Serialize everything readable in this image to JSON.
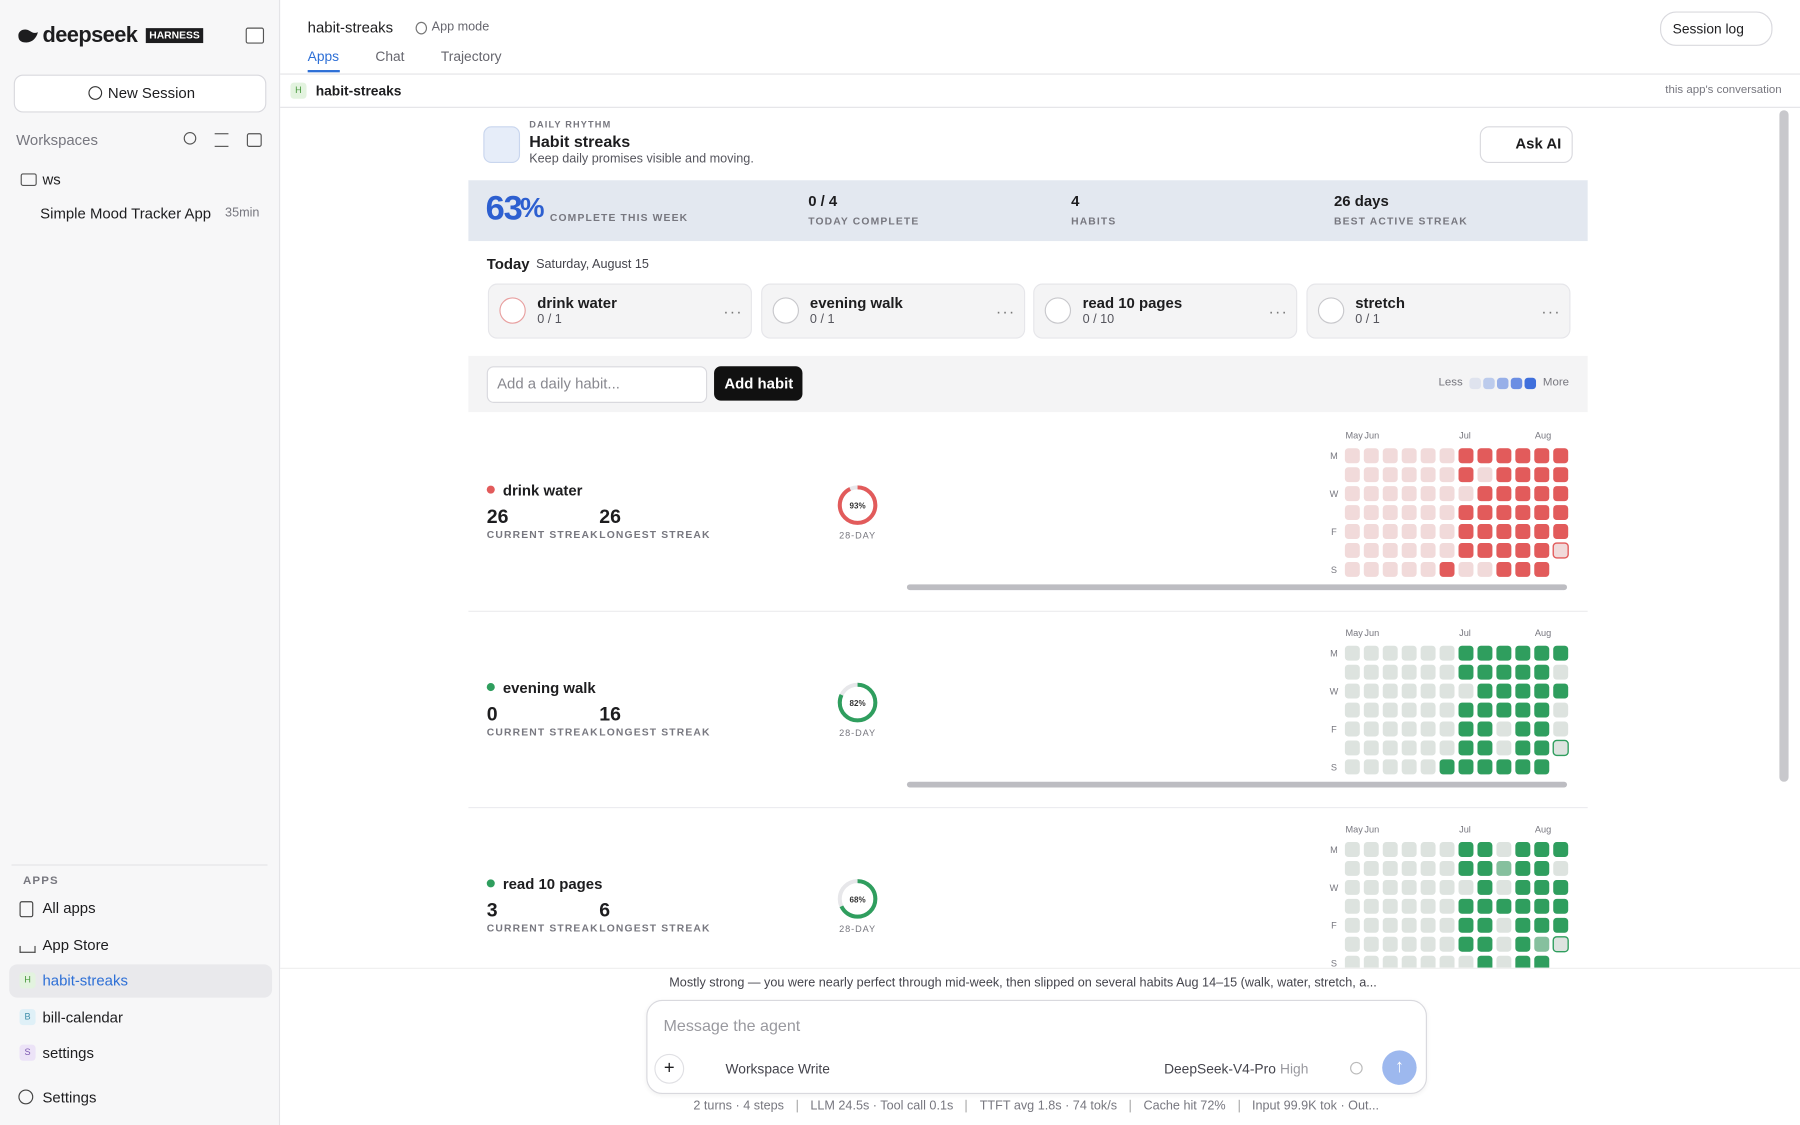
{
  "sidebar": {
    "brand": "deepseek",
    "badge": "HARNESS",
    "new_session": "New Session",
    "workspaces_label": "Workspaces",
    "folder": "ws",
    "sessions": [
      {
        "title": "Simple Mood Tracker App",
        "age": "35min"
      }
    ],
    "apps_label": "APPS",
    "links": [
      "All apps",
      "App Store"
    ],
    "app_list": [
      {
        "badge": "H",
        "name": "habit-streaks"
      },
      {
        "badge": "B",
        "name": "bill-calendar"
      },
      {
        "badge": "S",
        "name": "settings"
      }
    ],
    "settings": "Settings"
  },
  "header": {
    "title": "habit-streaks",
    "mode": "App mode",
    "tabs": [
      "Apps",
      "Chat",
      "Trajectory"
    ],
    "session_log": "Session log"
  },
  "app_bar": {
    "badge": "H",
    "name": "habit-streaks",
    "note": "this app's conversation"
  },
  "app": {
    "eyebrow": "DAILY RHYTHM",
    "title": "Habit streaks",
    "subtitle": "Keep daily promises visible and moving.",
    "ask_ai": "Ask AI",
    "stats": [
      {
        "value": "63",
        "suffix": "%",
        "label": "COMPLETE THIS WEEK"
      },
      {
        "value": "0 / 4",
        "label": "TODAY COMPLETE"
      },
      {
        "value": "4",
        "label": "HABITS"
      },
      {
        "value": "26 days",
        "label": "BEST ACTIVE STREAK"
      }
    ],
    "today": {
      "label": "Today",
      "date": "Saturday, August 15",
      "habits": [
        {
          "name": "drink water",
          "progress": "0 / 1"
        },
        {
          "name": "evening walk",
          "progress": "0 / 1"
        },
        {
          "name": "read 10 pages",
          "progress": "0 / 10"
        },
        {
          "name": "stretch",
          "progress": "0 / 1"
        }
      ]
    },
    "input_placeholder": "Add a daily habit...",
    "add_button": "Add habit",
    "legend": {
      "less": "Less",
      "more": "More"
    },
    "heatmap_columns": [
      "May",
      "Jun",
      null,
      null,
      null,
      null,
      "Jul",
      null,
      null,
      null,
      "Aug",
      null
    ],
    "heatmap_rows": [
      "M",
      null,
      "W",
      null,
      "F",
      null,
      "S"
    ],
    "habits": [
      {
        "name": "drink water",
        "color": "#e25b5b",
        "light": "#f1dada",
        "current": 26,
        "longest": 26,
        "current_label": "CURRENT STREAK",
        "longest_label": "LONGEST STREAK",
        "ring": {
          "value": 93,
          "label": "93%"
        },
        "ring_caption": "28-DAY",
        "grid": [
          [
            0,
            0,
            0,
            0,
            0,
            0,
            1,
            1,
            1,
            1,
            1,
            1
          ],
          [
            0,
            0,
            0,
            0,
            0,
            0,
            1,
            0,
            1,
            1,
            1,
            1
          ],
          [
            0,
            0,
            0,
            0,
            0,
            0,
            0,
            1,
            1,
            1,
            1,
            1
          ],
          [
            0,
            0,
            0,
            0,
            0,
            0,
            1,
            1,
            1,
            1,
            1,
            1
          ],
          [
            0,
            0,
            0,
            0,
            0,
            0,
            1,
            1,
            1,
            1,
            1,
            1
          ],
          [
            0,
            0,
            0,
            0,
            0,
            0,
            1,
            1,
            1,
            1,
            1,
            0
          ],
          [
            0,
            0,
            0,
            0,
            0,
            1,
            0,
            0,
            1,
            1,
            1,
            null
          ]
        ]
      },
      {
        "name": "evening walk",
        "color": "#2f9e5e",
        "light": "#dde3df",
        "current": 0,
        "longest": 16,
        "current_label": "CURRENT STREAK",
        "longest_label": "LONGEST STREAK",
        "ring": {
          "value": 82,
          "label": "82%"
        },
        "ring_caption": "28-DAY",
        "grid": [
          [
            0,
            0,
            0,
            0,
            0,
            0,
            1,
            1,
            1,
            1,
            1,
            1
          ],
          [
            0,
            0,
            0,
            0,
            0,
            0,
            1,
            1,
            1,
            1,
            1,
            0
          ],
          [
            0,
            0,
            0,
            0,
            0,
            0,
            0,
            1,
            1,
            1,
            1,
            1
          ],
          [
            0,
            0,
            0,
            0,
            0,
            0,
            1,
            1,
            1,
            1,
            1,
            0
          ],
          [
            0,
            0,
            0,
            0,
            0,
            0,
            1,
            1,
            0,
            1,
            1,
            0
          ],
          [
            0,
            0,
            0,
            0,
            0,
            0,
            1,
            1,
            0,
            1,
            1,
            0
          ],
          [
            0,
            0,
            0,
            0,
            0,
            1,
            1,
            1,
            1,
            1,
            1,
            null
          ]
        ]
      },
      {
        "name": "read 10 pages",
        "color": "#2f9e5e",
        "light": "#dde3df",
        "current": 3,
        "longest": 6,
        "current_label": "CURRENT STREAK",
        "longest_label": "LONGEST STREAK",
        "ring": {
          "value": 68,
          "label": "68%"
        },
        "ring_caption": "28-DAY",
        "grid": [
          [
            0,
            0,
            0,
            0,
            0,
            0,
            1,
            1,
            0,
            1,
            1,
            1
          ],
          [
            0,
            0,
            0,
            0,
            0,
            0,
            1,
            1,
            0.5,
            1,
            1,
            0
          ],
          [
            0,
            0,
            0,
            0,
            0,
            0,
            0,
            1,
            0,
            1,
            1,
            1
          ],
          [
            0,
            0,
            0,
            0,
            0,
            0,
            1,
            1,
            1,
            1,
            1,
            1
          ],
          [
            0,
            0,
            0,
            0,
            0,
            0,
            1,
            1,
            0,
            1,
            1,
            1
          ],
          [
            0,
            0,
            0,
            0,
            0,
            0,
            1,
            1,
            0,
            1,
            0.5,
            0
          ],
          [
            0,
            0,
            0,
            0,
            0,
            0,
            0,
            1,
            0,
            1,
            1,
            null
          ]
        ]
      }
    ]
  },
  "agent": {
    "summary": "Mostly strong — you were nearly perfect through mid-week, then slipped on several habits Aug 14–15 (walk, water, stretch, a...",
    "placeholder": "Message the agent",
    "permission": "Workspace Write",
    "model": "DeepSeek-V4-Pro",
    "effort": "High",
    "stats": [
      "2 turns · 4 steps",
      "LLM 24.5s · Tool call 0.1s",
      "TTFT avg 1.8s · 74 tok/s",
      "Cache hit 72%",
      "Input 99.9K tok · Out..."
    ]
  }
}
